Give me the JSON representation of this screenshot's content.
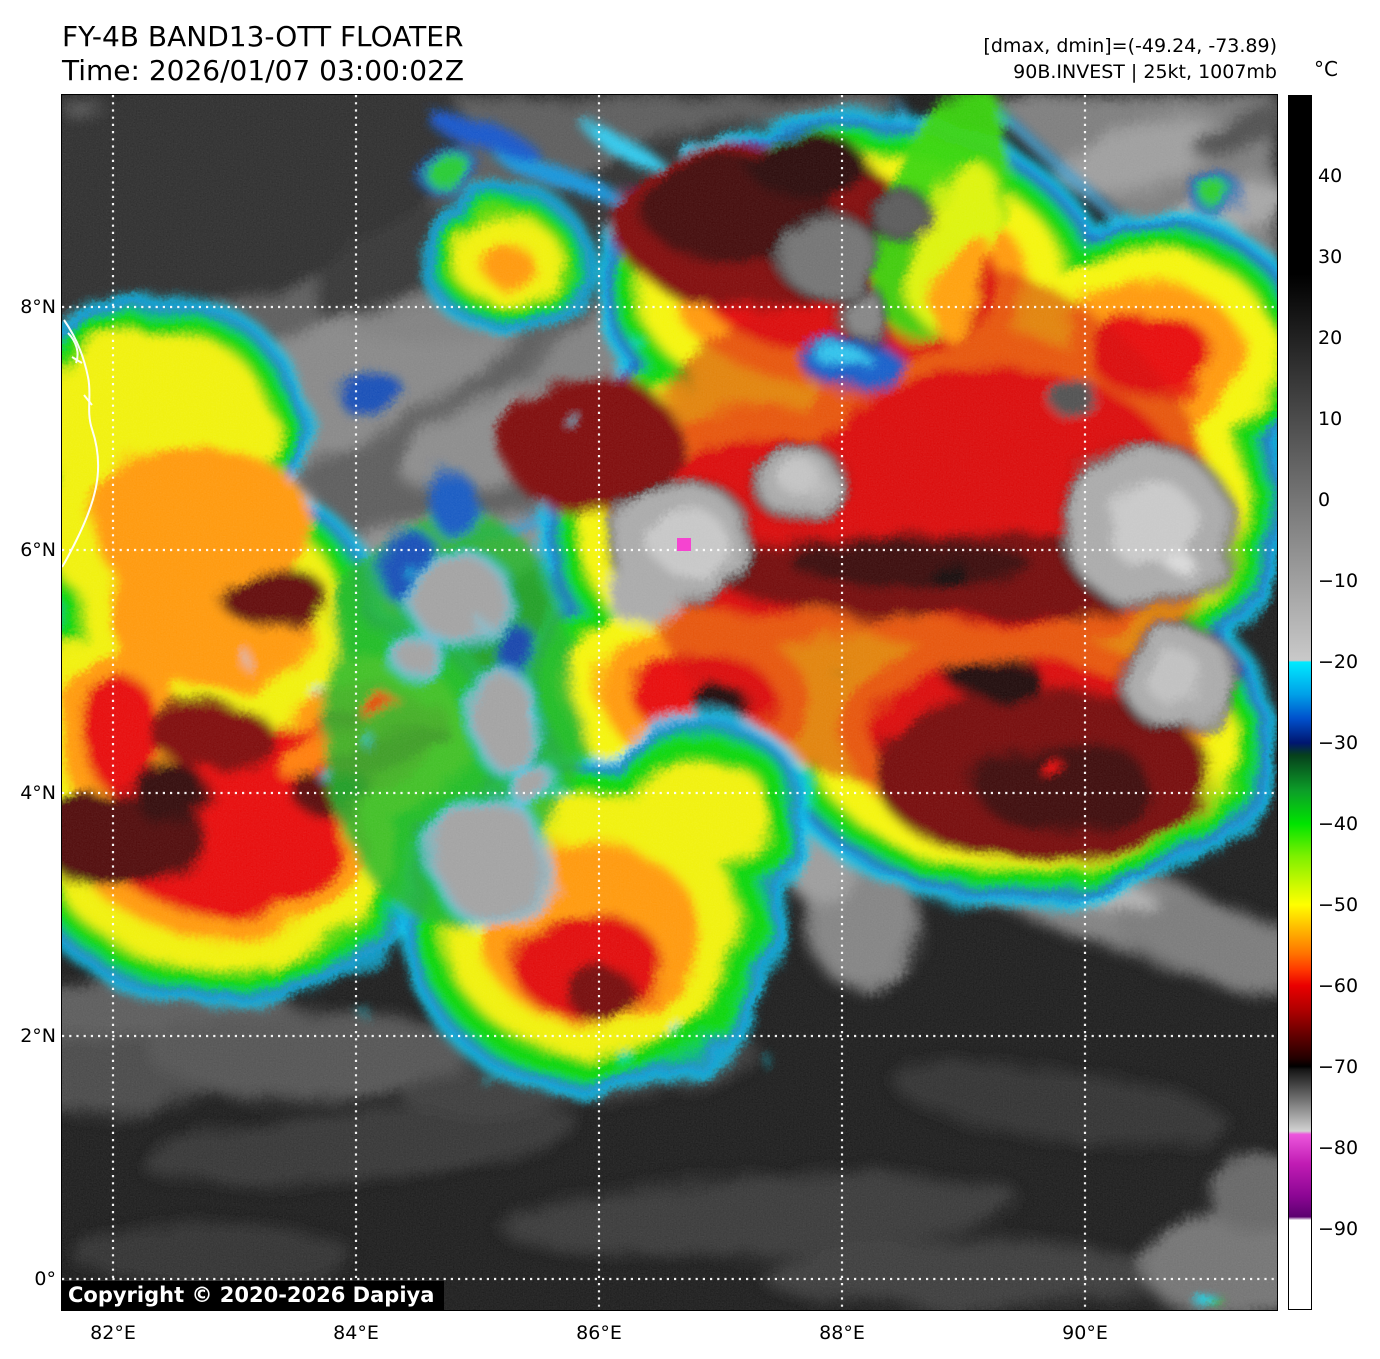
{
  "header": {
    "title": "FY-4B BAND13-OTT FLOATER",
    "time_line": "Time: 2026/01/07 03:00:02Z",
    "dmax_dmin_line": "[dmax, dmin]=(-49.24, -73.89)",
    "storm_line": "90B.INVEST | 25kt, 1007mb"
  },
  "map": {
    "copyright": "Copyright © 2020-2026 Dapiya",
    "grid_color": "#ffffff",
    "lat_ticks": [
      {
        "label": "8°N",
        "value": 8
      },
      {
        "label": "6°N",
        "value": 6
      },
      {
        "label": "4°N",
        "value": 4
      },
      {
        "label": "2°N",
        "value": 2
      },
      {
        "label": "0°",
        "value": 0
      }
    ],
    "lon_ticks": [
      {
        "label": "82°E",
        "value": 82
      },
      {
        "label": "84°E",
        "value": 84
      },
      {
        "label": "86°E",
        "value": 86
      },
      {
        "label": "88°E",
        "value": 88
      },
      {
        "label": "90°E",
        "value": 90
      }
    ],
    "marker": {
      "lon": 86.7,
      "lat": 6.04,
      "color": "#f544d0"
    }
  },
  "colorbar": {
    "unit": "°C",
    "domain": {
      "top_value": 50,
      "bottom_value": -100
    },
    "ticks": [
      {
        "label": "40",
        "value": 40
      },
      {
        "label": "30",
        "value": 30
      },
      {
        "label": "20",
        "value": 20
      },
      {
        "label": "10",
        "value": 10
      },
      {
        "label": "0",
        "value": 0
      },
      {
        "label": "−10",
        "value": -10
      },
      {
        "label": "−20",
        "value": -20
      },
      {
        "label": "−30",
        "value": -30
      },
      {
        "label": "−40",
        "value": -40
      },
      {
        "label": "−50",
        "value": -50
      },
      {
        "label": "−60",
        "value": -60
      },
      {
        "label": "−70",
        "value": -70
      },
      {
        "label": "−80",
        "value": -80
      },
      {
        "label": "−90",
        "value": -90
      }
    ],
    "stops": [
      {
        "value": 50,
        "color": "#000000"
      },
      {
        "value": 28,
        "color": "#000000"
      },
      {
        "value": -19.8,
        "color": "#c9c9c9"
      },
      {
        "value": -20,
        "color": "#00eaff"
      },
      {
        "value": -24,
        "color": "#00a0e8"
      },
      {
        "value": -27,
        "color": "#0050cc"
      },
      {
        "value": -30,
        "color": "#001670"
      },
      {
        "value": -31.5,
        "color": "#06401c"
      },
      {
        "value": -36,
        "color": "#0ca028"
      },
      {
        "value": -40,
        "color": "#00e400"
      },
      {
        "value": -44,
        "color": "#7df000"
      },
      {
        "value": -48,
        "color": "#d6fa00"
      },
      {
        "value": -50,
        "color": "#ffff00"
      },
      {
        "value": -53,
        "color": "#ffb800"
      },
      {
        "value": -56,
        "color": "#ff7400"
      },
      {
        "value": -58,
        "color": "#ff3a00"
      },
      {
        "value": -60,
        "color": "#ea0000"
      },
      {
        "value": -63,
        "color": "#b00000"
      },
      {
        "value": -66,
        "color": "#670000"
      },
      {
        "value": -69,
        "color": "#230000"
      },
      {
        "value": -70,
        "color": "#000000"
      },
      {
        "value": -70.4,
        "color": "#161616"
      },
      {
        "value": -78,
        "color": "#d2d2d2"
      },
      {
        "value": -78.4,
        "color": "#ec56dc"
      },
      {
        "value": -82,
        "color": "#c11cb4"
      },
      {
        "value": -86,
        "color": "#8c0694"
      },
      {
        "value": -88.6,
        "color": "#5c0070"
      },
      {
        "value": -89,
        "color": "#ffffff"
      },
      {
        "value": -100,
        "color": "#ffffff"
      }
    ]
  }
}
